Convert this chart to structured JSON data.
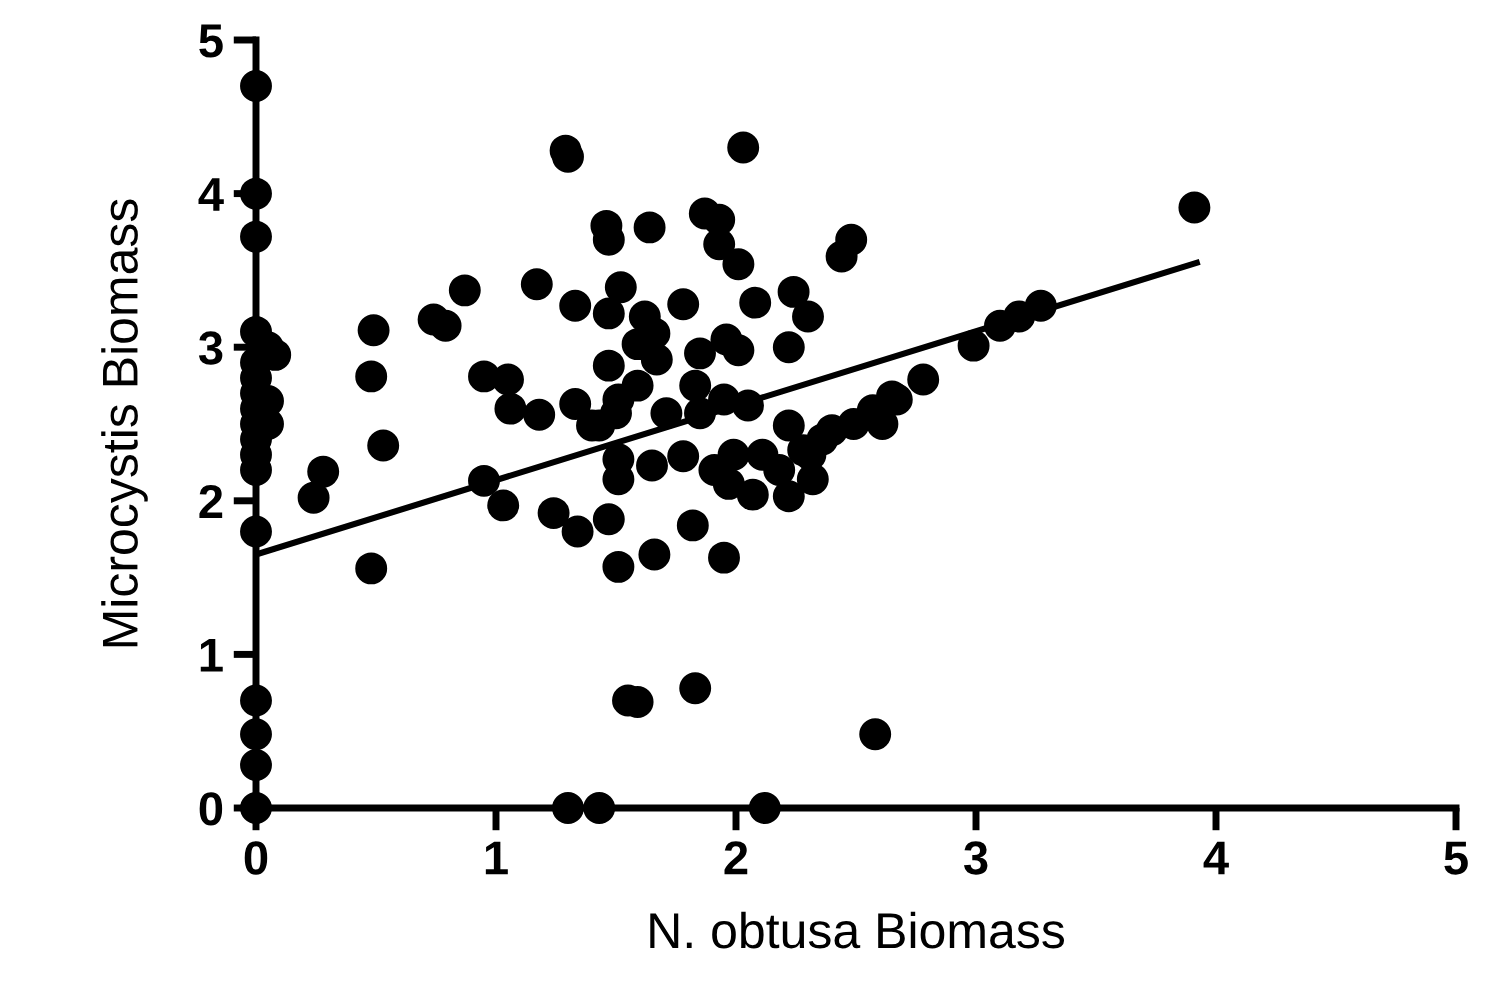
{
  "chart_data": {
    "type": "scatter",
    "xlabel": "N. obtusa Biomass",
    "ylabel": "Microcystis Biomass",
    "xlim": [
      0,
      5
    ],
    "ylim": [
      0,
      5
    ],
    "xticks": [
      0,
      1,
      2,
      3,
      4,
      5
    ],
    "yticks": [
      0,
      1,
      2,
      3,
      4,
      5
    ],
    "grid": false,
    "marker": "circle",
    "series": [
      {
        "color": "#000000",
        "x": [
          0,
          0,
          0,
          0,
          0,
          0,
          0,
          0,
          0,
          0,
          0,
          0,
          0,
          0,
          0,
          0,
          0,
          0.05,
          0.08,
          0.05,
          0.05,
          0.24,
          0.28,
          0.49,
          0.48,
          0.53,
          0.48,
          0.74,
          0.79,
          0.87,
          0.95,
          1.03,
          0.95,
          1.05,
          1.06,
          1.17,
          1.18,
          1.29,
          1.3,
          1.33,
          1.24,
          1.34,
          1.33,
          1.4,
          1.46,
          1.47,
          1.52,
          1.47,
          1.47,
          1.51,
          1.47,
          1.51,
          1.55,
          1.3,
          1.43,
          2.03,
          1.64,
          1.87,
          1.93,
          1.93,
          2.01,
          2.48,
          2.44,
          1.62,
          1.78,
          2.08,
          2.24,
          2.3,
          1.59,
          1.66,
          1.67,
          1.85,
          1.96,
          2.01,
          2.22,
          1.59,
          1.83,
          1.5,
          1.71,
          1.85,
          1.95,
          2.05,
          1.43,
          1.51,
          1.51,
          1.65,
          1.78,
          1.91,
          1.99,
          1.97,
          2.07,
          2.11,
          2.22,
          2.18,
          2.22,
          2.32,
          2.28,
          2.36,
          2.4,
          2.49,
          2.57,
          2.61,
          2.67,
          2.78,
          2.99,
          1.82,
          1.66,
          1.95,
          1.59,
          1.83,
          2.58,
          2.12,
          3.91,
          3.27,
          3.18,
          3.1,
          2.65,
          2.31
        ],
        "values": [
          4.7,
          4.0,
          3.72,
          3.1,
          2.9,
          2.8,
          2.7,
          2.6,
          2.5,
          2.4,
          2.3,
          2.2,
          1.8,
          0.7,
          0.48,
          0.28,
          0,
          3.0,
          2.95,
          2.5,
          2.65,
          2.02,
          2.19,
          3.11,
          2.81,
          2.36,
          1.56,
          3.18,
          3.14,
          3.37,
          2.13,
          1.97,
          2.81,
          2.79,
          2.6,
          3.41,
          2.56,
          4.28,
          4.24,
          3.27,
          1.92,
          1.8,
          2.63,
          2.49,
          3.79,
          3.7,
          3.39,
          3.22,
          2.88,
          2.66,
          1.88,
          1.57,
          0.7,
          0,
          0,
          4.3,
          3.78,
          3.87,
          3.83,
          3.67,
          3.54,
          3.7,
          3.59,
          3.2,
          3.28,
          3.29,
          3.36,
          3.2,
          3.02,
          3.09,
          2.92,
          2.96,
          3.05,
          2.98,
          3.0,
          2.75,
          2.75,
          2.57,
          2.57,
          2.57,
          2.66,
          2.62,
          2.49,
          2.27,
          2.14,
          2.23,
          2.29,
          2.2,
          2.3,
          2.11,
          2.04,
          2.3,
          2.49,
          2.2,
          2.03,
          2.14,
          2.33,
          2.4,
          2.46,
          2.5,
          2.59,
          2.5,
          2.66,
          2.79,
          3.01,
          1.84,
          1.65,
          1.63,
          0.69,
          0.78,
          0.48,
          0,
          3.91,
          3.27,
          3.2,
          3.14,
          2.68,
          2.3
        ]
      },
      {
        "type": "line",
        "color": "#000000",
        "line_style": "solid",
        "marker": "none",
        "x": [
          0,
          3.92
        ],
        "values": [
          1.65,
          3.55
        ]
      }
    ]
  }
}
